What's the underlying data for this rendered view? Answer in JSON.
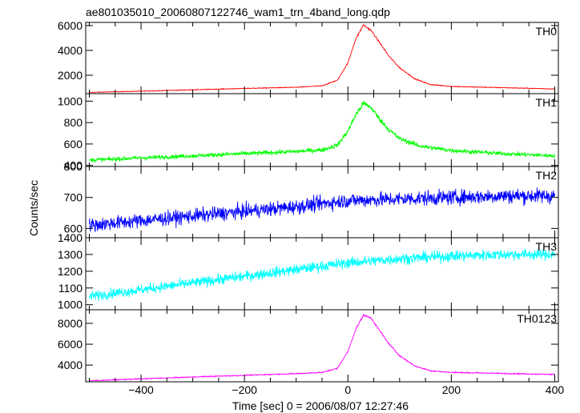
{
  "chart_data": {
    "type": "line",
    "title": "ae801035010_20060807122746_wam1_trn_4band_long.qdp",
    "xlabel": "Time [sec] 0 = 2006/08/07 12:27:46",
    "ylabel": "Counts/sec",
    "xlim": [
      -507,
      407
    ],
    "x_ticks": [
      -400,
      -200,
      0,
      200,
      400
    ],
    "x_tick_labels": [
      "−400",
      "−200",
      "0",
      "200",
      "400"
    ],
    "grid": false,
    "panels": [
      {
        "name": "TH0",
        "color": "#ff0000",
        "ylim": [
          520,
          6250
        ],
        "y_ticks": [
          2000,
          4000,
          6000
        ],
        "series_points": [
          [
            -500,
            620
          ],
          [
            -400,
            720
          ],
          [
            -300,
            830
          ],
          [
            -200,
            940
          ],
          [
            -100,
            1030
          ],
          [
            -50,
            1150
          ],
          [
            -20,
            1600
          ],
          [
            0,
            3000
          ],
          [
            15,
            4900
          ],
          [
            30,
            6050
          ],
          [
            45,
            5600
          ],
          [
            60,
            4700
          ],
          [
            80,
            3500
          ],
          [
            100,
            2600
          ],
          [
            130,
            1700
          ],
          [
            160,
            1250
          ],
          [
            200,
            1100
          ],
          [
            300,
            1000
          ],
          [
            400,
            900
          ]
        ]
      },
      {
        "name": "TH1",
        "color": "#00ff00",
        "ylim": [
          390,
          1070
        ],
        "y_ticks": [
          400,
          600,
          800,
          1000
        ],
        "series_points": [
          [
            -500,
            450
          ],
          [
            -400,
            470
          ],
          [
            -300,
            490
          ],
          [
            -200,
            510
          ],
          [
            -100,
            530
          ],
          [
            -50,
            545
          ],
          [
            -20,
            590
          ],
          [
            0,
            720
          ],
          [
            15,
            870
          ],
          [
            30,
            980
          ],
          [
            45,
            940
          ],
          [
            60,
            840
          ],
          [
            80,
            730
          ],
          [
            100,
            650
          ],
          [
            140,
            580
          ],
          [
            200,
            540
          ],
          [
            300,
            510
          ],
          [
            400,
            490
          ]
        ]
      },
      {
        "name": "TH2",
        "color": "#0000ff",
        "ylim": [
          570,
          800
        ],
        "y_ticks": [
          600,
          700,
          800
        ],
        "series_points": [
          [
            -500,
            610
          ],
          [
            -400,
            625
          ],
          [
            -300,
            640
          ],
          [
            -200,
            655
          ],
          [
            -100,
            670
          ],
          [
            0,
            690
          ],
          [
            100,
            695
          ],
          [
            200,
            700
          ],
          [
            300,
            705
          ],
          [
            400,
            705
          ]
        ]
      },
      {
        "name": "TH3",
        "color": "#00ffff",
        "ylim": [
          970,
          1400
        ],
        "y_ticks": [
          1000,
          1100,
          1200,
          1300,
          1400
        ],
        "series_points": [
          [
            -500,
            1050
          ],
          [
            -400,
            1090
          ],
          [
            -300,
            1130
          ],
          [
            -200,
            1170
          ],
          [
            -100,
            1210
          ],
          [
            0,
            1250
          ],
          [
            100,
            1275
          ],
          [
            200,
            1290
          ],
          [
            300,
            1300
          ],
          [
            400,
            1300
          ]
        ]
      },
      {
        "name": "TH0123",
        "color": "#ff00ff",
        "ylim": [
          2400,
          9300
        ],
        "y_ticks": [
          4000,
          6000,
          8000
        ],
        "series_points": [
          [
            -500,
            2500
          ],
          [
            -400,
            2680
          ],
          [
            -300,
            2860
          ],
          [
            -200,
            3020
          ],
          [
            -100,
            3180
          ],
          [
            -50,
            3300
          ],
          [
            -20,
            3700
          ],
          [
            0,
            5300
          ],
          [
            15,
            7400
          ],
          [
            30,
            8800
          ],
          [
            45,
            8500
          ],
          [
            60,
            7400
          ],
          [
            80,
            6000
          ],
          [
            100,
            4900
          ],
          [
            130,
            3900
          ],
          [
            160,
            3450
          ],
          [
            200,
            3300
          ],
          [
            300,
            3200
          ],
          [
            400,
            3100
          ]
        ]
      }
    ]
  }
}
